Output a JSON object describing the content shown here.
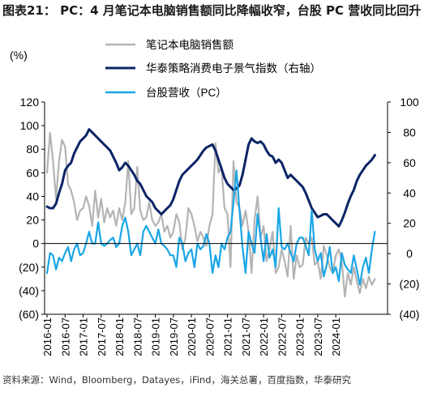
{
  "title": "图表21： PC：4 月笔记本电脑销售额同比降幅收窄，台股 PC 营收同比回升",
  "source": "资料来源：Wind，Bloomberg，Datayes，iFind，海关总署，百度指数，华泰研究",
  "chart_data": {
    "type": "line",
    "left_axis": {
      "unit_label": "(%)",
      "ylim": [
        -60,
        120
      ],
      "ticks": [
        -60,
        -40,
        -20,
        0,
        20,
        40,
        60,
        80,
        100,
        120
      ],
      "tick_labels": [
        "(60)",
        "(40)",
        "(20)",
        "0",
        "20",
        "40",
        "60",
        "80",
        "100",
        "120"
      ]
    },
    "right_axis": {
      "ylim": [
        -40,
        100
      ],
      "ticks": [
        -40,
        -20,
        0,
        20,
        40,
        60,
        80,
        100
      ],
      "tick_labels": [
        "(40)",
        "(20)",
        "0",
        "20",
        "40",
        "60",
        "80",
        "100"
      ]
    },
    "x_tick_labels": [
      "2016-01",
      "2016-07",
      "2017-01",
      "2017-07",
      "2018-01",
      "2018-07",
      "2019-01",
      "2019-07",
      "2020-01",
      "2020-07",
      "2021-01",
      "2021-07",
      "2022-01",
      "2022-07",
      "2023-01",
      "2023-07",
      "2024-01"
    ],
    "x_start": "2016-01",
    "legend": [
      "笔记本电脑销售额",
      "华泰策略消费电子景气指数（右轴）",
      "台股营收（PC）"
    ],
    "series": [
      {
        "name": "笔记本电脑销售额",
        "axis": "left",
        "color": "#b4b4b4",
        "values": [
          60,
          94,
          70,
          38,
          70,
          88,
          82,
          50,
          45,
          35,
          20,
          28,
          30,
          40,
          32,
          15,
          45,
          22,
          38,
          18,
          30,
          22,
          28,
          15,
          30,
          20,
          35,
          70,
          25,
          30,
          65,
          28,
          20,
          22,
          35,
          20,
          15,
          18,
          25,
          10,
          15,
          5,
          10,
          25,
          18,
          -5,
          5,
          30,
          25,
          15,
          2,
          10,
          5,
          -2,
          15,
          25,
          85,
          60,
          65,
          30,
          25,
          -20,
          70,
          35,
          30,
          15,
          28,
          10,
          -25,
          20,
          40,
          5,
          15,
          -15,
          -5,
          10,
          -25,
          -20,
          -5,
          -15,
          -28,
          15,
          -30,
          -10,
          -20,
          -18,
          5,
          0,
          5,
          -18,
          -15,
          -30,
          -2,
          -10,
          -20,
          -25,
          -10,
          -5,
          -15,
          -45,
          -25,
          -35,
          -20,
          -32,
          -42,
          -30,
          -38,
          -28,
          -35,
          -30
        ]
      },
      {
        "name": "华泰策略消费电子景气指数（右轴）",
        "axis": "right",
        "color": "#0b2466",
        "values": [
          31,
          30,
          30,
          33,
          40,
          46,
          55,
          58,
          60,
          66,
          70,
          74,
          76,
          78,
          82,
          80,
          78,
          76,
          74,
          72,
          70,
          68,
          64,
          60,
          55,
          57,
          60,
          58,
          55,
          52,
          48,
          46,
          42,
          38,
          36,
          34,
          30,
          28,
          26,
          28,
          30,
          32,
          36,
          42,
          48,
          52,
          54,
          56,
          58,
          60,
          62,
          65,
          68,
          70,
          71,
          72,
          68,
          62,
          56,
          50,
          46,
          44,
          42,
          43,
          45,
          52,
          62,
          72,
          76,
          74,
          73,
          74,
          72,
          68,
          65,
          64,
          60,
          62,
          60,
          55,
          50,
          52,
          50,
          48,
          46,
          44,
          40,
          35,
          30,
          27,
          24,
          25,
          26,
          26,
          24,
          22,
          20,
          18,
          22,
          27,
          33,
          38,
          42,
          48,
          52,
          55,
          58,
          60,
          62,
          65
        ]
      },
      {
        "name": "台股营收（PC）",
        "axis": "left",
        "color": "#1aa6e6",
        "values": [
          -25,
          -8,
          -10,
          -22,
          -12,
          -15,
          -8,
          -3,
          -15,
          -5,
          0,
          -10,
          -8,
          0,
          10,
          0,
          0,
          18,
          0,
          -2,
          0,
          3,
          5,
          -3,
          0,
          15,
          22,
          10,
          -10,
          -5,
          0,
          -10,
          10,
          15,
          10,
          5,
          0,
          12,
          0,
          -2,
          -5,
          -10,
          -10,
          -20,
          5,
          0,
          -15,
          -8,
          -5,
          -20,
          0,
          -5,
          -2,
          8,
          0,
          -25,
          -10,
          -20,
          0,
          -5,
          5,
          10,
          35,
          62,
          28,
          -3,
          -25,
          10,
          0,
          -8,
          25,
          5,
          -15,
          8,
          -12,
          -5,
          -20,
          30,
          -3,
          -5,
          0,
          -8,
          -15,
          0,
          5,
          5,
          -2,
          -10,
          28,
          -5,
          -15,
          -8,
          -28,
          -18,
          -3,
          -25,
          -20,
          -32,
          -8,
          -18,
          -22,
          -25,
          -10,
          -22,
          -35,
          -20,
          -12,
          -25,
          -5,
          10
        ]
      }
    ]
  }
}
